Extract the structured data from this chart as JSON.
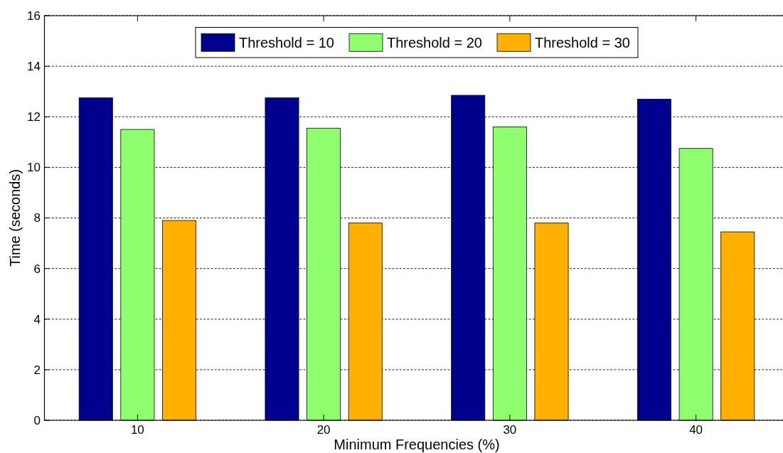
{
  "chart_data": {
    "type": "bar",
    "xlabel": "Minimum Frequencies (%)",
    "ylabel": "Time (seconds)",
    "categories": [
      "10",
      "20",
      "30",
      "40"
    ],
    "series": [
      {
        "name": "Threshold = 10",
        "color": "#00008f",
        "values": [
          12.75,
          12.75,
          12.85,
          12.7
        ]
      },
      {
        "name": "Threshold = 20",
        "color": "#8fff70",
        "values": [
          11.5,
          11.55,
          11.6,
          10.75
        ]
      },
      {
        "name": "Threshold = 30",
        "color": "#ffb000",
        "values": [
          7.9,
          7.8,
          7.8,
          7.45
        ]
      }
    ],
    "ylim": [
      0,
      16
    ],
    "yticks": [
      0,
      2,
      4,
      6,
      8,
      10,
      12,
      14,
      16
    ],
    "grid": "y",
    "legend": "top"
  }
}
